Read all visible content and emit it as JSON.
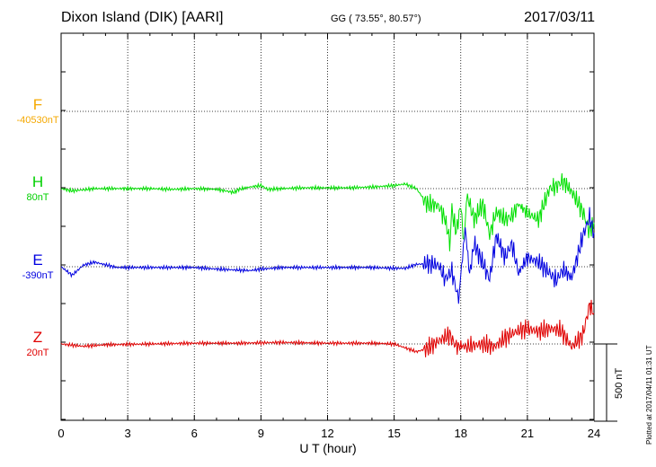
{
  "header": {
    "station": "Dixon Island (DIK)  [AARI]",
    "coords": "GG ( 73.55°,  80.57°)",
    "date": "2017/03/11"
  },
  "footer": {
    "plotted": "Plotted at 2017/04/11 01:31 UT"
  },
  "chart_data": {
    "type": "line",
    "xlabel": "U T (hour)",
    "xlim": [
      0,
      24
    ],
    "xticks": [
      "0",
      "3",
      "6",
      "9",
      "12",
      "15",
      "18",
      "21",
      "24"
    ],
    "grid": true,
    "scale_bar": {
      "label": "500 nT",
      "value_nT": 500
    },
    "series": [
      {
        "name": "F",
        "baseline": "-40530nT",
        "color": "#f5a800",
        "has_trace": false,
        "points": []
      },
      {
        "name": "H",
        "baseline": "80nT",
        "color": "#00e000",
        "has_trace": true,
        "points": [
          [
            0,
            0
          ],
          [
            0.5,
            -15
          ],
          [
            1.5,
            0
          ],
          [
            2.5,
            0
          ],
          [
            4,
            0
          ],
          [
            5,
            -5
          ],
          [
            6,
            0
          ],
          [
            7,
            -5
          ],
          [
            7.8,
            -25
          ],
          [
            8,
            -5
          ],
          [
            8.5,
            10
          ],
          [
            9,
            20
          ],
          [
            9.3,
            -5
          ],
          [
            10,
            0
          ],
          [
            11,
            5
          ],
          [
            12,
            5
          ],
          [
            13,
            5
          ],
          [
            14,
            10
          ],
          [
            15,
            20
          ],
          [
            15.5,
            30
          ],
          [
            16,
            0
          ],
          [
            16.5,
            -100
          ],
          [
            17,
            -110
          ],
          [
            17.3,
            -200
          ],
          [
            17.5,
            -340
          ],
          [
            17.6,
            -150
          ],
          [
            17.8,
            -280
          ],
          [
            18,
            -100
          ],
          [
            18.1,
            -350
          ],
          [
            18.2,
            -200
          ],
          [
            18.3,
            -50
          ],
          [
            18.6,
            -200
          ],
          [
            19,
            -100
          ],
          [
            19.3,
            -300
          ],
          [
            19.6,
            -150
          ],
          [
            20,
            -200
          ],
          [
            20.3,
            -180
          ],
          [
            20.6,
            -100
          ],
          [
            21,
            -160
          ],
          [
            21.5,
            -200
          ],
          [
            22,
            0
          ],
          [
            22.3,
            15
          ],
          [
            22.6,
            50
          ],
          [
            23,
            -20
          ],
          [
            23.5,
            -150
          ],
          [
            23.8,
            -280
          ],
          [
            24,
            -220
          ]
        ]
      },
      {
        "name": "E",
        "baseline": "-390nT",
        "color": "#0000e0",
        "has_trace": true,
        "points": [
          [
            0,
            0
          ],
          [
            0.5,
            -55
          ],
          [
            1,
            10
          ],
          [
            1.5,
            30
          ],
          [
            2.5,
            -5
          ],
          [
            4,
            -5
          ],
          [
            6,
            -5
          ],
          [
            7,
            -15
          ],
          [
            8.5,
            -25
          ],
          [
            9,
            -15
          ],
          [
            10,
            -5
          ],
          [
            12,
            -5
          ],
          [
            14,
            -5
          ],
          [
            15,
            -10
          ],
          [
            15.5,
            -10
          ],
          [
            16,
            15
          ],
          [
            16.5,
            20
          ],
          [
            17,
            10
          ],
          [
            17.3,
            -80
          ],
          [
            17.6,
            -30
          ],
          [
            17.9,
            -210
          ],
          [
            18,
            -60
          ],
          [
            18.2,
            250
          ],
          [
            18.4,
            -50
          ],
          [
            18.6,
            150
          ],
          [
            19,
            20
          ],
          [
            19.3,
            -80
          ],
          [
            19.6,
            200
          ],
          [
            20,
            60
          ],
          [
            20.3,
            150
          ],
          [
            20.6,
            -40
          ],
          [
            21,
            60
          ],
          [
            21.5,
            30
          ],
          [
            22,
            -40
          ],
          [
            22.3,
            -90
          ],
          [
            22.6,
            -20
          ],
          [
            23,
            -70
          ],
          [
            23.5,
            200
          ],
          [
            23.8,
            320
          ],
          [
            24,
            220
          ]
        ]
      },
      {
        "name": "Z",
        "baseline": "20nT",
        "color": "#e00000",
        "has_trace": true,
        "points": [
          [
            0,
            0
          ],
          [
            1,
            -15
          ],
          [
            2,
            -5
          ],
          [
            4,
            0
          ],
          [
            6,
            5
          ],
          [
            8,
            5
          ],
          [
            10,
            10
          ],
          [
            12,
            5
          ],
          [
            14,
            5
          ],
          [
            15,
            0
          ],
          [
            15.5,
            -25
          ],
          [
            16,
            -50
          ],
          [
            16.5,
            -30
          ],
          [
            17,
            20
          ],
          [
            17.5,
            60
          ],
          [
            17.8,
            -20
          ],
          [
            18,
            -10
          ],
          [
            18.2,
            -20
          ],
          [
            18.5,
            -10
          ],
          [
            19,
            0
          ],
          [
            19.5,
            -20
          ],
          [
            20,
            40
          ],
          [
            20.5,
            80
          ],
          [
            21,
            100
          ],
          [
            21.5,
            80
          ],
          [
            22,
            100
          ],
          [
            22.5,
            90
          ],
          [
            23,
            -20
          ],
          [
            23.5,
            60
          ],
          [
            23.8,
            250
          ],
          [
            24,
            200
          ]
        ]
      }
    ]
  }
}
